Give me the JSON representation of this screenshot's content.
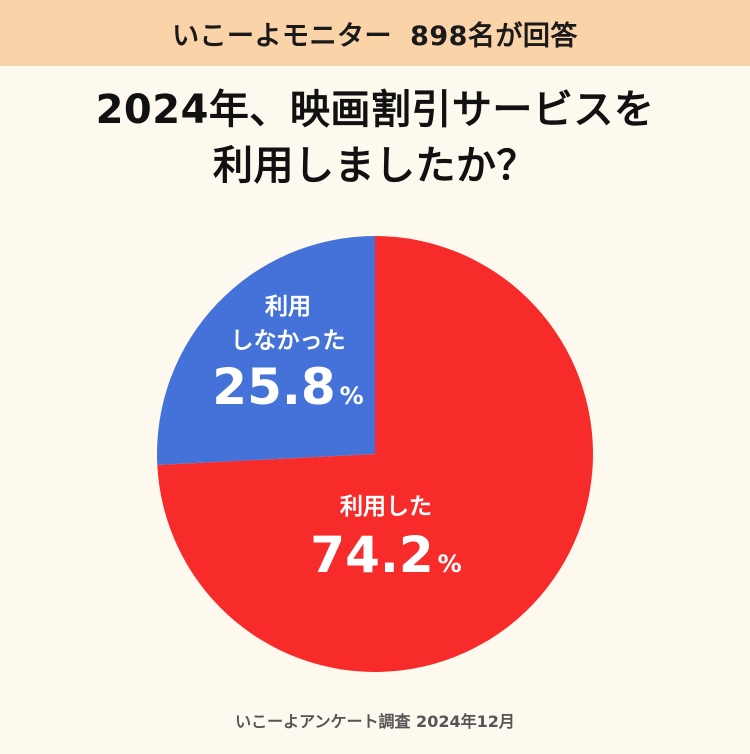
{
  "header": {
    "source_name": "いこーよモニター",
    "respondents": "898名が回答"
  },
  "title_lines": [
    "2024年、映画割引サービスを",
    "利用しましたか？"
  ],
  "footer": "いこーよアンケート調査 2024年12月",
  "chart_data": {
    "type": "pie",
    "title": "2024年、映画割引サービスを利用しましたか？",
    "start_angle_deg": 0,
    "direction": "clockwise",
    "slices": [
      {
        "label": "利用した",
        "label_lines": [
          "利用した"
        ],
        "value": 74.2,
        "value_text": "74.2",
        "unit": "%",
        "color": "#f82b2b"
      },
      {
        "label": "利用しなかった",
        "label_lines": [
          "利用",
          "しなかった"
        ],
        "value": 25.8,
        "value_text": "25.8",
        "unit": "%",
        "color": "#4472d8"
      }
    ]
  }
}
